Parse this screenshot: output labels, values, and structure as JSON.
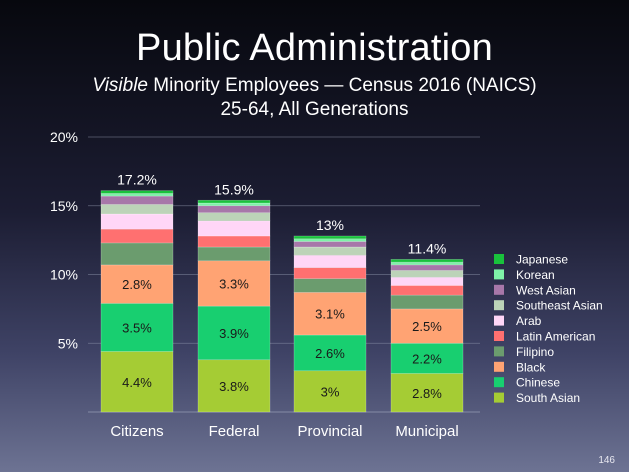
{
  "slide": {
    "title": "Public Administration",
    "subtitle_italic": "Visible",
    "subtitle_rest": " Minority Employees — Census 2016 (NAICS)",
    "subtitle_line2": "25-64, All Generations",
    "page_number": "146"
  },
  "chart_data": {
    "type": "bar",
    "stacked": true,
    "title": "",
    "xlabel": "",
    "ylabel": "",
    "ylim": [
      0,
      20
    ],
    "y_ticks": [
      "20%",
      "15%",
      "10%",
      "5%"
    ],
    "grid": true,
    "legend_position": "right",
    "categories": [
      "Citizens",
      "Federal",
      "Provincial",
      "Municipal"
    ],
    "totals": [
      17.2,
      15.9,
      13,
      11.4
    ],
    "total_labels": [
      "17.2%",
      "15.9%",
      "13%",
      "11.4%"
    ],
    "series": [
      {
        "name": "South Asian",
        "color": "#a5cc34",
        "values": [
          4.4,
          3.8,
          3.0,
          2.8
        ],
        "labels": [
          "4.4%",
          "3.8%",
          "3%",
          "2.8%"
        ]
      },
      {
        "name": "Chinese",
        "color": "#18cf70",
        "values": [
          3.5,
          3.9,
          2.6,
          2.2
        ],
        "labels": [
          "3.5%",
          "3.9%",
          "2.6%",
          "2.2%"
        ]
      },
      {
        "name": "Black",
        "color": "#ffa373",
        "values": [
          2.8,
          3.3,
          3.1,
          2.5
        ],
        "labels": [
          "2.8%",
          "3.3%",
          "3.1%",
          "2.5%"
        ]
      },
      {
        "name": "Filipino",
        "color": "#6b9c6e",
        "values": [
          1.6,
          1.0,
          1.0,
          1.0
        ],
        "labels": []
      },
      {
        "name": "Latin American",
        "color": "#ff7070",
        "values": [
          1.0,
          0.8,
          0.8,
          0.7
        ],
        "labels": []
      },
      {
        "name": "Arab",
        "color": "#ffd6f7",
        "values": [
          1.1,
          1.1,
          0.9,
          0.6
        ],
        "labels": []
      },
      {
        "name": "Southeast Asian",
        "color": "#bcd3b8",
        "values": [
          0.7,
          0.6,
          0.6,
          0.5
        ],
        "labels": []
      },
      {
        "name": "West Asian",
        "color": "#a777a9",
        "values": [
          0.6,
          0.5,
          0.4,
          0.4
        ],
        "labels": []
      },
      {
        "name": "Korean",
        "color": "#7ff2a8",
        "values": [
          0.2,
          0.2,
          0.2,
          0.2
        ],
        "labels": []
      },
      {
        "name": "Japanese",
        "color": "#19c23c",
        "values": [
          0.2,
          0.2,
          0.2,
          0.2
        ],
        "labels": []
      }
    ],
    "legend_order": [
      "Japanese",
      "Korean",
      "West Asian",
      "Southeast Asian",
      "Arab",
      "Latin American",
      "Filipino",
      "Black",
      "Chinese",
      "South Asian"
    ]
  }
}
